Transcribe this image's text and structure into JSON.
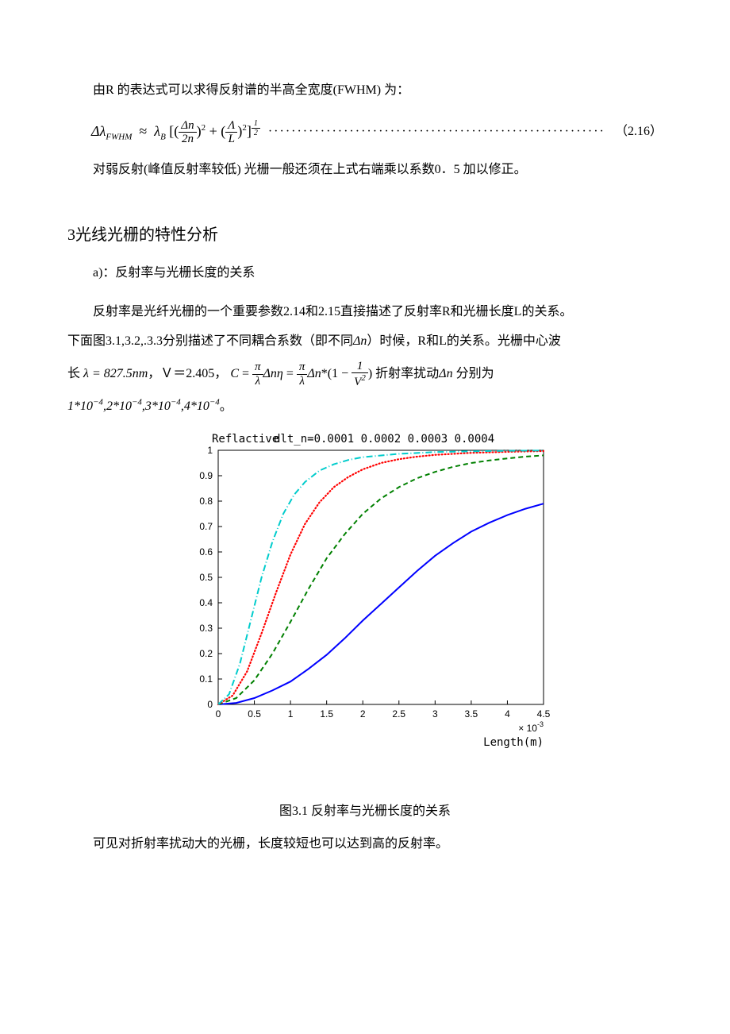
{
  "p1": "由R 的表达式可以求得反射谱的半高全宽度(FWHM) 为：",
  "eq216": {
    "lhs_sym": "Δλ",
    "lhs_sub": "FWHM",
    "approx": "≈",
    "lambdaB_sym": "λ",
    "lambdaB_sub": "B",
    "lbrack": "[(",
    "f1_num": "Δn",
    "f1_den": "2n",
    "rparen_sq": ")",
    "sq1": "2",
    "plus": " + (",
    "f2_num": "Λ",
    "f2_den": "L",
    "rparen2": ")",
    "sq2": "2",
    "rbrack": "]",
    "exp_num": "1",
    "exp_den": "2",
    "dots": "··························································",
    "num": "（2.16）"
  },
  "p2": "对弱反射(峰值反射率较低) 光栅一般还须在上式右端乘以系数0．5 加以修正。",
  "section3": "3光线光栅的特性分析",
  "p3": "a)：反射率与光栅长度的关系",
  "p4_a": "反射率是光纤光栅的一个重要参数2.14和2.15直接描述了反射率R和光栅长度L的关系。",
  "p4_b_pre": "下面图3.1,3.2,.3.3分别描述了不同耦合系数（即不同",
  "p4_dn": "Δn",
  "p4_b_post": "）时候，R和L的关系。光栅中心波",
  "p5_a": "长",
  "p5_lam": "λ = 827.5nm",
  "p5_b": "，Ｖ＝2.405，",
  "p5_C": "C",
  "p5_eq1": " = ",
  "p5_f1n": "π",
  "p5_f1d": "λ",
  "p5_dn1": "Δnη",
  "p5_eq2": " = ",
  "p5_f2n": "π",
  "p5_f2d": "λ",
  "p5_dn2": "Δn",
  "p5_star": "*(1 − ",
  "p5_f3n": "1",
  "p5_f3d_base": "V",
  "p5_f3d_sup": "2",
  "p5_rpar": ")",
  "p5_tail": " 折射率扰动",
  "p5_dn3": "Δn",
  "p5_tail2": " 分别为",
  "p6_a": "1*10",
  "p6_e1": "−4",
  "p6_c1": ",2*10",
  "p6_e2": "−4",
  "p6_c2": ",3*10",
  "p6_e3": "−4",
  "p6_c3": ",4*10",
  "p6_e4": "−4",
  "p6_dot": "。",
  "chart": {
    "type": "line",
    "title_left": "Reflactive",
    "title_right": "dlt_n=0.0001  0.0002  0.0003  0.0004",
    "xlabel": "Length(m)",
    "x_exp_label": "× 10",
    "x_exp_sup": "-3",
    "xlim": [
      0,
      4.5
    ],
    "ylim": [
      0,
      1
    ],
    "xticks": [
      0,
      0.5,
      1,
      1.5,
      2,
      2.5,
      3,
      3.5,
      4,
      4.5
    ],
    "yticks": [
      0,
      0.1,
      0.2,
      0.3,
      0.4,
      0.5,
      0.6,
      0.7,
      0.8,
      0.9,
      1
    ],
    "bg": "#ffffff",
    "box_color": "#000000",
    "series": [
      {
        "name": "dn=0.0001",
        "color": "#0000ff",
        "dash": "",
        "width": 2,
        "x": [
          0,
          0.25,
          0.5,
          0.75,
          1,
          1.25,
          1.5,
          1.75,
          2,
          2.25,
          2.5,
          2.75,
          3,
          3.25,
          3.5,
          3.75,
          4,
          4.25,
          4.5
        ],
        "y": [
          0,
          0.006,
          0.025,
          0.055,
          0.09,
          0.14,
          0.195,
          0.26,
          0.33,
          0.395,
          0.46,
          0.525,
          0.585,
          0.635,
          0.68,
          0.715,
          0.745,
          0.77,
          0.79
        ]
      },
      {
        "name": "dn=0.0002",
        "color": "#008000",
        "dash": "6,4",
        "width": 2,
        "x": [
          0,
          0.25,
          0.5,
          0.75,
          1,
          1.25,
          1.5,
          1.75,
          2,
          2.25,
          2.5,
          2.75,
          3,
          3.25,
          3.5,
          3.75,
          4,
          4.25,
          4.5
        ],
        "y": [
          0,
          0.025,
          0.095,
          0.2,
          0.325,
          0.455,
          0.575,
          0.67,
          0.75,
          0.81,
          0.855,
          0.89,
          0.915,
          0.935,
          0.95,
          0.96,
          0.968,
          0.975,
          0.98
        ]
      },
      {
        "name": "dn=0.0003",
        "color": "#ff0000",
        "dash": "1,3",
        "width": 2.2,
        "x": [
          0,
          0.2,
          0.4,
          0.6,
          0.8,
          1,
          1.2,
          1.4,
          1.6,
          1.8,
          2,
          2.25,
          2.5,
          2.75,
          3,
          3.5,
          4,
          4.5
        ],
        "y": [
          0,
          0.035,
          0.13,
          0.28,
          0.44,
          0.59,
          0.71,
          0.795,
          0.855,
          0.895,
          0.925,
          0.95,
          0.965,
          0.975,
          0.982,
          0.99,
          0.994,
          0.997
        ]
      },
      {
        "name": "dn=0.0004",
        "color": "#00cccc",
        "dash": "8,3,1,3",
        "width": 2,
        "x": [
          0,
          0.15,
          0.3,
          0.45,
          0.6,
          0.75,
          0.9,
          1.05,
          1.2,
          1.4,
          1.6,
          1.8,
          2,
          2.5,
          3,
          3.5,
          4,
          4.5
        ],
        "y": [
          0,
          0.04,
          0.16,
          0.33,
          0.5,
          0.64,
          0.75,
          0.825,
          0.875,
          0.92,
          0.945,
          0.962,
          0.973,
          0.986,
          0.993,
          0.996,
          0.998,
          0.999
        ]
      }
    ]
  },
  "fig_caption": "图3.1 反射率与光栅长度的关系",
  "p7": "可见对折射率扰动大的光栅，长度较短也可以达到高的反射率。"
}
